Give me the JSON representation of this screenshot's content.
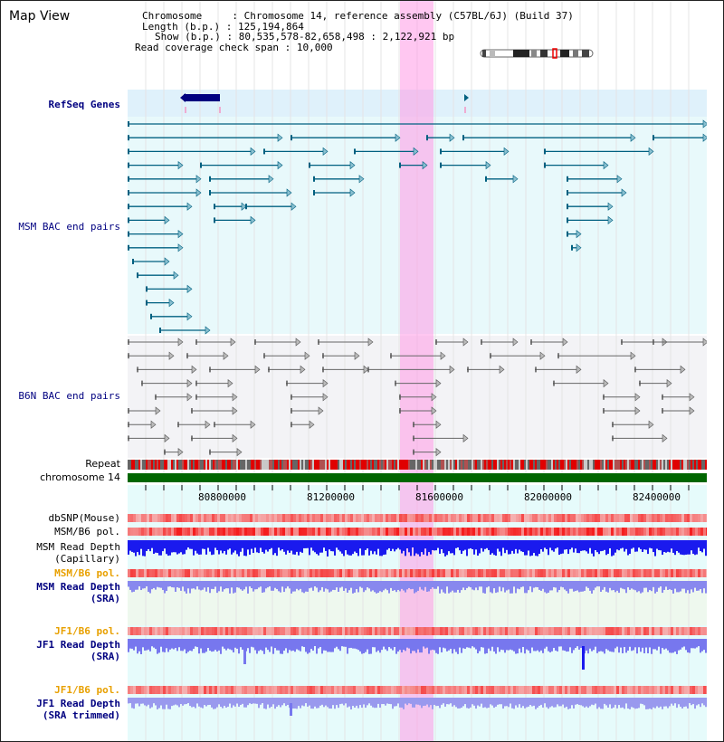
{
  "app": {
    "title": "Map View"
  },
  "header": {
    "chromosome_key": "Chromosome",
    "chromosome_value": "Chromosome 14, reference assembly (C57BL/6J) (Build 37)",
    "length_key": "Length (b.p.)",
    "length_value": "125,194,864",
    "show_key": "Show (b.p.)",
    "show_value": "80,535,578-82,658,498 : 2,122,921 bp",
    "coverage_key": "Read coverage check span",
    "coverage_value": "10,000"
  },
  "tracks": {
    "refseq": "RefSeq Genes",
    "msm_bac": "MSM BAC end pairs",
    "b6n_bac": "B6N BAC end pairs",
    "repeat": "Repeat",
    "chromosome": "chromosome 14",
    "dbsnp": "dbSNP(Mouse)",
    "msm_pol": "MSM/B6 pol.",
    "msm_depth_cap_1": "MSM Read Depth",
    "msm_depth_cap_2": "(Capillary)",
    "msm_pol2": "MSM/B6 pol.",
    "msm_depth_sra_1": "MSM Read Depth",
    "msm_depth_sra_2": "(SRA)",
    "jf1_pol": "JF1/B6 pol.",
    "jf1_depth_1": "JF1 Read Depth",
    "jf1_depth_2": "(SRA)",
    "jf1_pol2": "JF1/B6 pol.",
    "jf1_trim_1": "JF1 Read Depth",
    "jf1_trim_2": "(SRA trimmed)"
  },
  "axis": {
    "ticks": [
      "80800000",
      "81200000",
      "81600000",
      "82000000",
      "82400000"
    ]
  },
  "colors": {
    "gene": "#000080",
    "bac_msm": "#006080",
    "bac_b6n": "#444444",
    "highlight": "#ff99e6",
    "chromosome_bar": "#006600",
    "depth_strong": "#1a1aee",
    "depth_light": "#7777ee"
  }
}
